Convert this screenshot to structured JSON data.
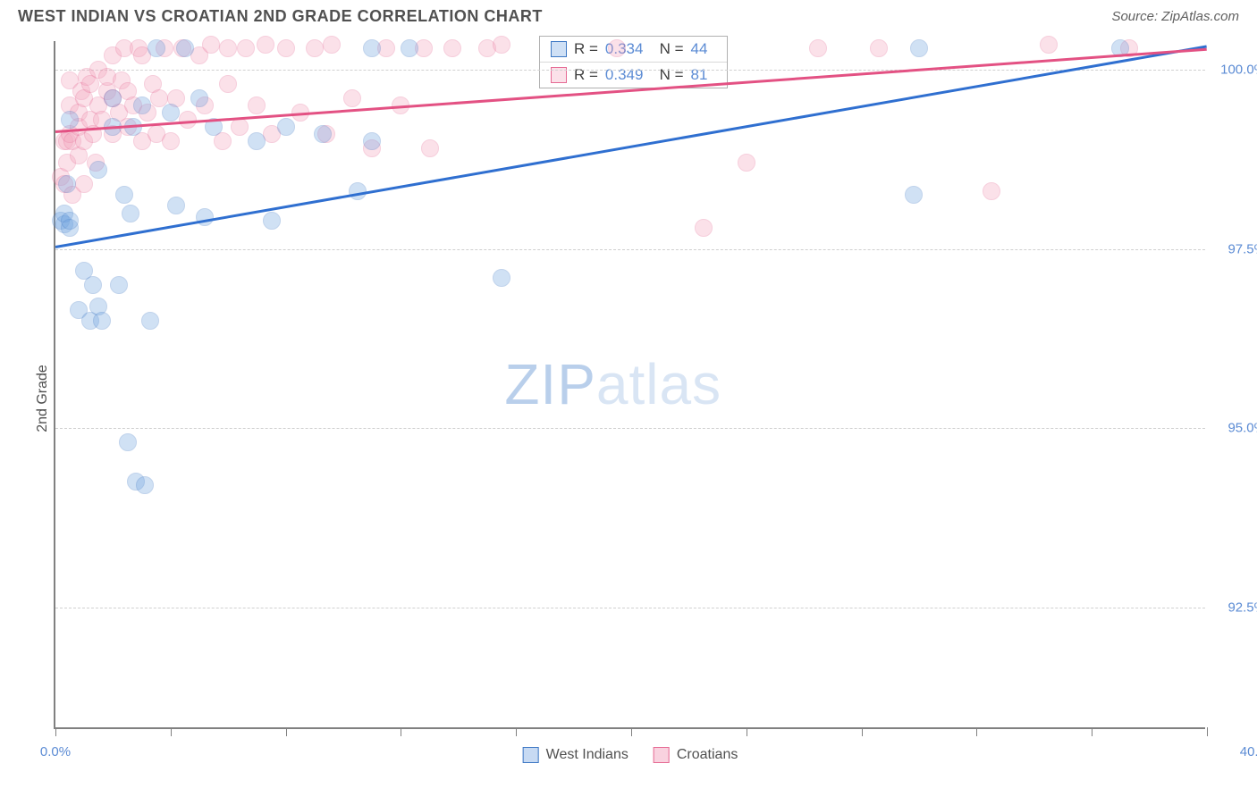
{
  "title": "WEST INDIAN VS CROATIAN 2ND GRADE CORRELATION CHART",
  "source": "Source: ZipAtlas.com",
  "ylabel": "2nd Grade",
  "watermark_a": "ZIP",
  "watermark_b": "atlas",
  "chart": {
    "type": "scatter",
    "xlim": [
      0.0,
      40.0
    ],
    "ylim": [
      90.8,
      100.4
    ],
    "x_ticks": [
      0.0,
      4.0,
      8.0,
      12.0,
      16.0,
      20.0,
      24.0,
      28.0,
      32.0,
      36.0,
      40.0
    ],
    "x_tick_labels": {
      "0": "0.0%",
      "10": "40.0%"
    },
    "y_grid": [
      92.5,
      95.0,
      97.5,
      100.0
    ],
    "y_tick_labels": [
      "92.5%",
      "95.0%",
      "97.5%",
      "100.0%"
    ],
    "background_color": "#ffffff",
    "grid_color": "#d0d0d0",
    "axis_color": "#808080",
    "label_fontsize": 16,
    "tick_fontsize": 15,
    "tick_label_color": "#5b8bd4",
    "marker_radius": 10,
    "marker_opacity": 0.32,
    "marker_stroke_opacity": 0.8,
    "marker_stroke_width": 1.2
  },
  "series": [
    {
      "name": "West Indians",
      "fill_color": "#6fa3e0",
      "stroke_color": "#3e78c4",
      "trend_color": "#2f6fd0",
      "trend": {
        "x1": 0.0,
        "y1": 97.55,
        "x2": 40.0,
        "y2": 100.35
      },
      "R": "0.334",
      "N": "44",
      "points": [
        [
          0.2,
          97.9
        ],
        [
          0.3,
          97.85
        ],
        [
          0.3,
          98.0
        ],
        [
          0.4,
          98.4
        ],
        [
          0.5,
          97.8
        ],
        [
          0.5,
          97.9
        ],
        [
          0.5,
          99.3
        ],
        [
          0.8,
          96.65
        ],
        [
          1.0,
          97.2
        ],
        [
          1.2,
          96.5
        ],
        [
          1.3,
          97.0
        ],
        [
          1.5,
          96.7
        ],
        [
          1.5,
          98.6
        ],
        [
          1.6,
          96.5
        ],
        [
          2.0,
          99.2
        ],
        [
          2.0,
          99.6
        ],
        [
          2.2,
          97.0
        ],
        [
          2.4,
          98.25
        ],
        [
          2.5,
          94.8
        ],
        [
          2.6,
          98.0
        ],
        [
          2.7,
          99.2
        ],
        [
          2.8,
          94.25
        ],
        [
          3.0,
          99.5
        ],
        [
          3.1,
          94.2
        ],
        [
          3.3,
          96.5
        ],
        [
          3.5,
          100.3
        ],
        [
          4.0,
          99.4
        ],
        [
          4.2,
          98.1
        ],
        [
          4.5,
          100.3
        ],
        [
          5.0,
          99.6
        ],
        [
          5.2,
          97.95
        ],
        [
          5.5,
          99.2
        ],
        [
          7.0,
          99.0
        ],
        [
          7.5,
          97.9
        ],
        [
          8.0,
          99.2
        ],
        [
          9.3,
          99.1
        ],
        [
          10.5,
          98.3
        ],
        [
          11.0,
          100.3
        ],
        [
          11.0,
          99.0
        ],
        [
          12.3,
          100.3
        ],
        [
          15.5,
          97.1
        ],
        [
          29.8,
          98.25
        ],
        [
          30.0,
          100.3
        ],
        [
          37.0,
          100.3
        ]
      ]
    },
    {
      "name": "Croatians",
      "fill_color": "#f3a4bd",
      "stroke_color": "#e66a94",
      "trend_color": "#e35183",
      "trend": {
        "x1": 0.0,
        "y1": 99.15,
        "x2": 40.0,
        "y2": 100.3
      },
      "R": "0.349",
      "N": "81",
      "points": [
        [
          0.2,
          98.5
        ],
        [
          0.3,
          98.4
        ],
        [
          0.3,
          99.0
        ],
        [
          0.4,
          99.0
        ],
        [
          0.4,
          98.7
        ],
        [
          0.5,
          99.1
        ],
        [
          0.5,
          99.5
        ],
        [
          0.5,
          99.85
        ],
        [
          0.6,
          98.25
        ],
        [
          0.6,
          99.0
        ],
        [
          0.8,
          99.2
        ],
        [
          0.8,
          98.8
        ],
        [
          0.8,
          99.4
        ],
        [
          0.9,
          99.7
        ],
        [
          1.0,
          98.4
        ],
        [
          1.0,
          99.0
        ],
        [
          1.0,
          99.6
        ],
        [
          1.1,
          99.9
        ],
        [
          1.2,
          99.3
        ],
        [
          1.2,
          99.8
        ],
        [
          1.3,
          99.1
        ],
        [
          1.4,
          98.7
        ],
        [
          1.5,
          99.5
        ],
        [
          1.5,
          100.0
        ],
        [
          1.6,
          99.3
        ],
        [
          1.8,
          99.7
        ],
        [
          1.8,
          99.9
        ],
        [
          2.0,
          99.1
        ],
        [
          2.0,
          99.6
        ],
        [
          2.0,
          100.2
        ],
        [
          2.2,
          99.4
        ],
        [
          2.3,
          99.85
        ],
        [
          2.4,
          100.3
        ],
        [
          2.5,
          99.2
        ],
        [
          2.5,
          99.7
        ],
        [
          2.7,
          99.5
        ],
        [
          2.9,
          100.3
        ],
        [
          3.0,
          99.0
        ],
        [
          3.0,
          100.2
        ],
        [
          3.2,
          99.4
        ],
        [
          3.4,
          99.8
        ],
        [
          3.5,
          99.1
        ],
        [
          3.6,
          99.6
        ],
        [
          3.8,
          100.3
        ],
        [
          4.0,
          99.0
        ],
        [
          4.2,
          99.6
        ],
        [
          4.4,
          100.3
        ],
        [
          4.6,
          99.3
        ],
        [
          5.0,
          100.2
        ],
        [
          5.2,
          99.5
        ],
        [
          5.4,
          100.35
        ],
        [
          5.8,
          99.0
        ],
        [
          6.0,
          99.8
        ],
        [
          6.0,
          100.3
        ],
        [
          6.4,
          99.2
        ],
        [
          6.6,
          100.3
        ],
        [
          7.0,
          99.5
        ],
        [
          7.3,
          100.35
        ],
        [
          7.5,
          99.1
        ],
        [
          8.0,
          100.3
        ],
        [
          8.5,
          99.4
        ],
        [
          9.0,
          100.3
        ],
        [
          9.4,
          99.1
        ],
        [
          9.6,
          100.35
        ],
        [
          10.3,
          99.6
        ],
        [
          11.0,
          98.9
        ],
        [
          11.5,
          100.3
        ],
        [
          12.0,
          99.5
        ],
        [
          12.8,
          100.3
        ],
        [
          13.0,
          98.9
        ],
        [
          13.8,
          100.3
        ],
        [
          15.0,
          100.3
        ],
        [
          15.5,
          100.35
        ],
        [
          19.5,
          100.3
        ],
        [
          22.5,
          97.8
        ],
        [
          24.0,
          98.7
        ],
        [
          26.5,
          100.3
        ],
        [
          28.6,
          100.3
        ],
        [
          32.5,
          98.3
        ],
        [
          34.5,
          100.35
        ],
        [
          37.3,
          100.3
        ]
      ]
    }
  ],
  "stats_box": {
    "left_pct": 42.0,
    "top_y": 100.48
  },
  "bottom_legend": [
    {
      "label": "West Indians",
      "fill": "#c7daf3",
      "stroke": "#3e78c4"
    },
    {
      "label": "Croatians",
      "fill": "#f9d2df",
      "stroke": "#e66a94"
    }
  ],
  "watermark_color_a": "#b9cfeb",
  "watermark_color_b": "#d9e5f4"
}
